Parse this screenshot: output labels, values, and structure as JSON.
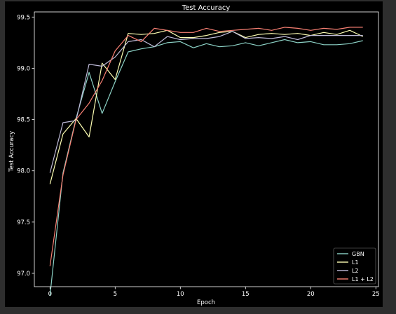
{
  "chart_data": {
    "type": "line",
    "title": "Test Accuracy",
    "xlabel": "Epoch",
    "ylabel": "Test Accuracy",
    "xlim": [
      -1.2,
      25.2
    ],
    "ylim": [
      96.87,
      99.55
    ],
    "xticks": [
      0,
      5,
      10,
      15,
      20,
      25
    ],
    "xtick_labels": [
      "0",
      "5",
      "10",
      "15",
      "20",
      "25"
    ],
    "yticks": [
      97.0,
      97.5,
      98.0,
      98.5,
      99.0,
      99.5
    ],
    "ytick_labels": [
      "97.0",
      "97.5",
      "98.0",
      "98.5",
      "99.0",
      "99.5"
    ],
    "grid": false,
    "legend_position": "lower-right",
    "x": [
      0,
      1,
      2,
      3,
      4,
      5,
      6,
      7,
      8,
      9,
      10,
      11,
      12,
      13,
      14,
      15,
      16,
      17,
      18,
      19,
      20,
      21,
      22,
      23,
      24
    ],
    "series": [
      {
        "name": "GBN",
        "color": "#8dd3c7",
        "values": [
          96.78,
          97.98,
          98.51,
          98.96,
          98.56,
          98.87,
          99.16,
          99.19,
          99.21,
          99.25,
          99.26,
          99.2,
          99.24,
          99.21,
          99.22,
          99.25,
          99.22,
          99.25,
          99.28,
          99.25,
          99.26,
          99.23,
          99.23,
          99.24,
          99.27
        ]
      },
      {
        "name": "L1",
        "color": "#feffb3",
        "values": [
          97.87,
          98.36,
          98.51,
          98.33,
          99.05,
          98.89,
          99.34,
          99.33,
          99.34,
          99.37,
          99.3,
          99.3,
          99.32,
          99.35,
          99.36,
          99.3,
          99.33,
          99.34,
          99.33,
          99.34,
          99.32,
          99.35,
          99.33,
          99.37,
          99.31
        ]
      },
      {
        "name": "L2",
        "color": "#bfbbd9",
        "values": [
          97.98,
          98.47,
          98.49,
          99.04,
          99.02,
          99.11,
          99.26,
          99.28,
          99.21,
          99.31,
          99.28,
          99.29,
          99.29,
          99.31,
          99.36,
          99.29,
          99.3,
          99.29,
          99.31,
          99.28,
          99.32,
          99.32,
          99.32,
          99.32,
          99.32
        ]
      },
      {
        "name": "L1 + L2",
        "color": "#fa8174",
        "values": [
          97.07,
          97.96,
          98.5,
          98.66,
          98.88,
          99.17,
          99.32,
          99.26,
          99.39,
          99.37,
          99.35,
          99.35,
          99.39,
          99.36,
          99.37,
          99.38,
          99.39,
          99.37,
          99.4,
          99.39,
          99.37,
          99.39,
          99.38,
          99.4,
          99.4
        ]
      }
    ]
  }
}
